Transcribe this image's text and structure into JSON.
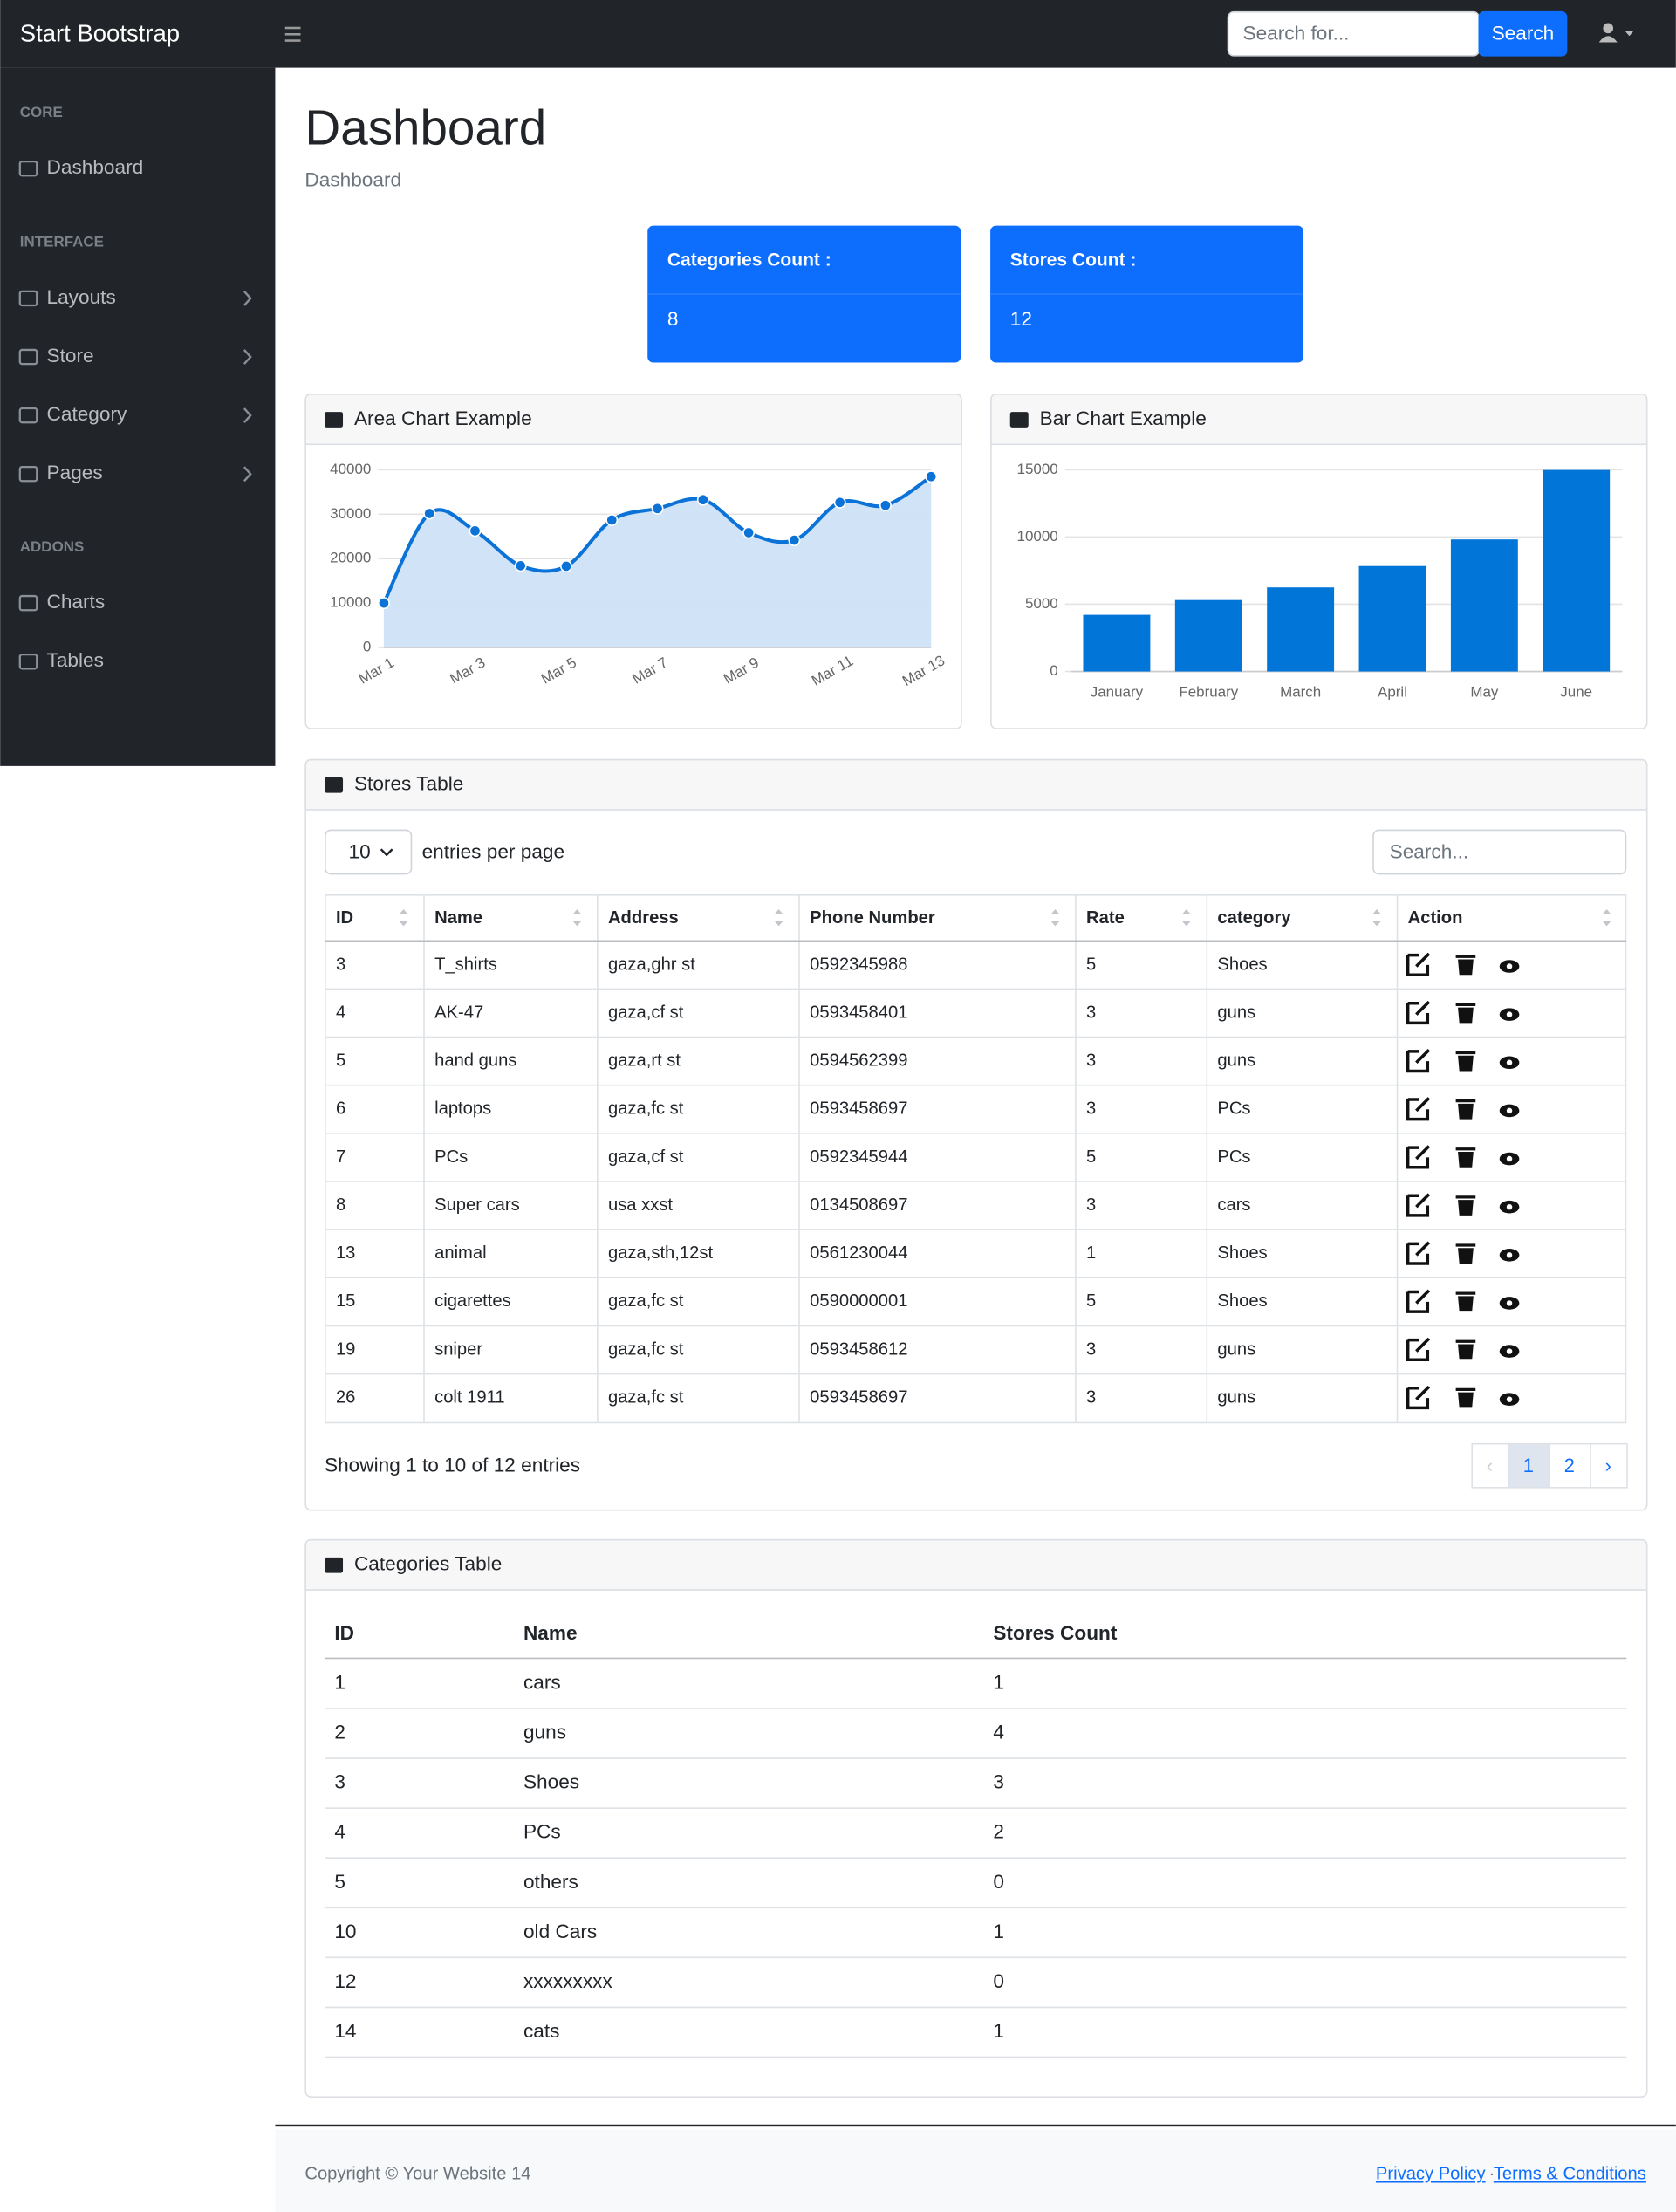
{
  "topbar": {
    "brand": "Start Bootstrap",
    "search_placeholder": "Search for...",
    "search_button": "Search"
  },
  "sidebar": {
    "sections": [
      {
        "heading": "CORE",
        "items": [
          "Dashboard"
        ]
      },
      {
        "heading": "INTERFACE",
        "items": [
          "Layouts",
          "Store",
          "Category",
          "Pages"
        ]
      },
      {
        "heading": "ADDONS",
        "items": [
          "Charts",
          "Tables"
        ]
      }
    ]
  },
  "page": {
    "title": "Dashboard",
    "breadcrumb": "Dashboard"
  },
  "cards": [
    {
      "label": "Categories Count :",
      "value": 8
    },
    {
      "label": "Stores Count :",
      "value": 12
    }
  ],
  "chart_data": [
    {
      "type": "area",
      "title": "Area Chart Example",
      "categories": [
        "Mar 1",
        null,
        "Mar 3",
        null,
        "Mar 5",
        null,
        "Mar 7",
        null,
        "Mar 9",
        null,
        "Mar 11",
        null,
        "Mar 13"
      ],
      "values": [
        10000,
        30162,
        26263,
        18394,
        18287,
        28682,
        31274,
        33259,
        25849,
        24159,
        32651,
        31984,
        38451
      ],
      "color": "#0b72d8",
      "fill": "#cfe2f6",
      "ylim": [
        0,
        40000
      ],
      "yticks": [
        0,
        10000,
        20000,
        30000,
        40000
      ],
      "grid": true
    },
    {
      "type": "bar",
      "title": "Bar Chart Example",
      "categories": [
        "January",
        "February",
        "March",
        "April",
        "May",
        "June"
      ],
      "values": [
        4215,
        5312,
        6251,
        7841,
        9821,
        14984
      ],
      "color": "#0275d8",
      "ylim": [
        0,
        15000
      ],
      "yticks": [
        0,
        5000,
        10000,
        15000
      ],
      "grid": true
    }
  ],
  "stores_table": {
    "title": "Stores Table",
    "page_size": 10,
    "page_size_label": "entries per page",
    "search_placeholder": "Search...",
    "columns": [
      "ID",
      "Name",
      "Address",
      "Phone Number",
      "Rate",
      "category",
      "Action"
    ],
    "rows": [
      [
        3,
        "T_shirts",
        "gaza,ghr st",
        "0592345988",
        5,
        "Shoes"
      ],
      [
        4,
        "AK-47",
        "gaza,cf st",
        "0593458401",
        3,
        "guns"
      ],
      [
        5,
        "hand guns",
        "gaza,rt st",
        "0594562399",
        3,
        "guns"
      ],
      [
        6,
        "laptops",
        "gaza,fc st",
        "0593458697",
        3,
        "PCs"
      ],
      [
        7,
        "PCs",
        "gaza,cf st",
        "0592345944",
        5,
        "PCs"
      ],
      [
        8,
        "Super cars",
        "usa xxst",
        "0134508697",
        3,
        "cars"
      ],
      [
        13,
        "animal",
        "gaza,sth,12st",
        "0561230044",
        1,
        "Shoes"
      ],
      [
        15,
        "cigarettes",
        "gaza,fc st",
        "0590000001",
        5,
        "Shoes"
      ],
      [
        19,
        "sniper",
        "gaza,fc st",
        "0593458612",
        3,
        "guns"
      ],
      [
        26,
        "colt 1911",
        "gaza,fc st",
        "0593458697",
        3,
        "guns"
      ]
    ],
    "summary": "Showing 1 to 10 of 12 entries",
    "prev": "‹",
    "pages": [
      1,
      2
    ],
    "next": "›"
  },
  "categories_table": {
    "title": "Categories Table",
    "columns": [
      "ID",
      "Name",
      "Stores Count"
    ],
    "rows": [
      [
        1,
        "cars",
        1
      ],
      [
        2,
        "guns",
        4
      ],
      [
        3,
        "Shoes",
        3
      ],
      [
        4,
        "PCs",
        2
      ],
      [
        5,
        "others",
        0
      ],
      [
        10,
        "old Cars",
        1
      ],
      [
        12,
        "xxxxxxxxx",
        0
      ],
      [
        14,
        "cats",
        1
      ]
    ]
  },
  "footer": {
    "copyright": "Copyright © Your Website 14",
    "links": [
      "Privacy Policy",
      "Terms & Conditions"
    ],
    "separator": "·"
  }
}
